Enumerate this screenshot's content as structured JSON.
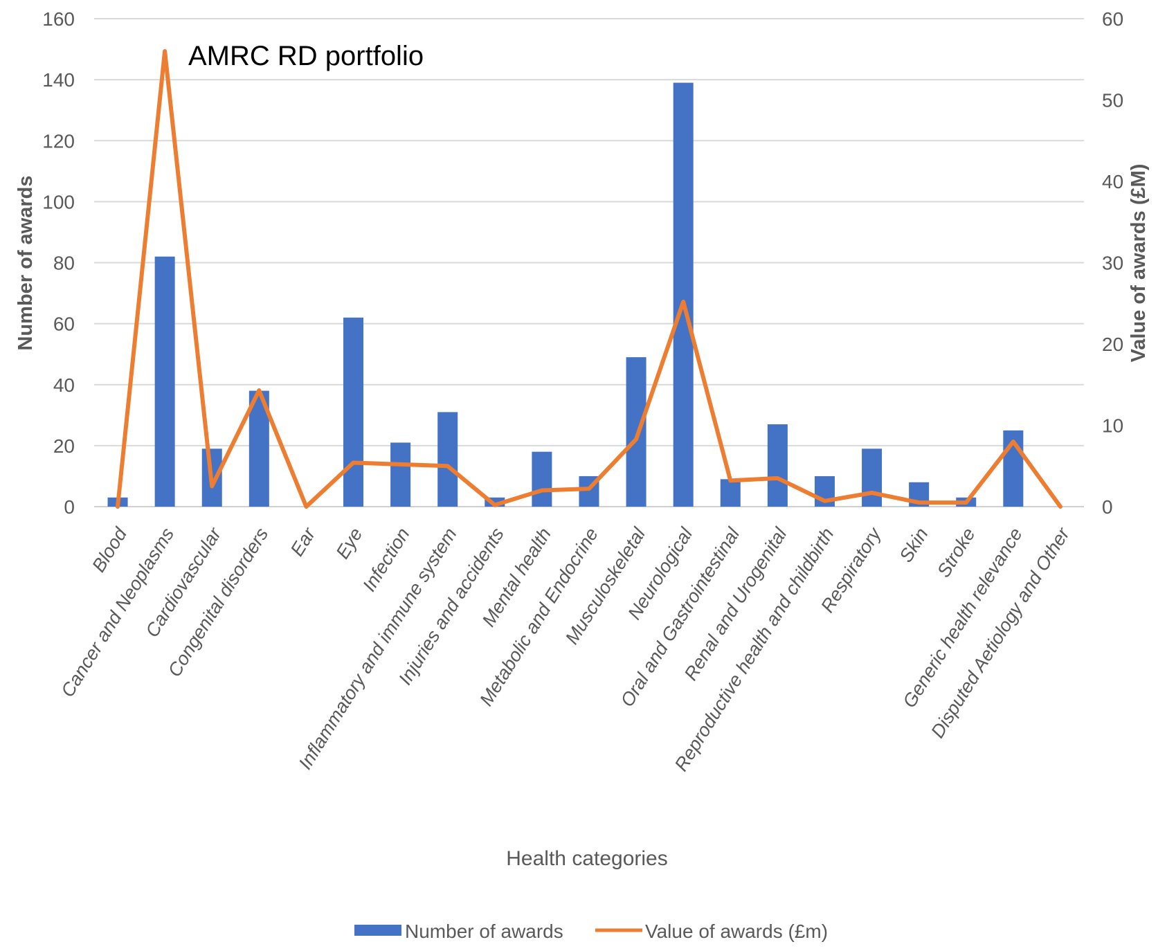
{
  "chart_data": {
    "type": "bar",
    "annotation": "AMRC RD portfolio",
    "xlabel": "Health categories",
    "ylabel_left": "Number of awards",
    "ylabel_right": "Value of awards (£M)",
    "ylim_left": [
      0,
      160
    ],
    "ylim_right": [
      0,
      60
    ],
    "yticks_left": [
      0,
      20,
      40,
      60,
      80,
      100,
      120,
      140,
      160
    ],
    "yticks_right": [
      0,
      10,
      20,
      30,
      40,
      50,
      60
    ],
    "grid": true,
    "legend_position": "bottom",
    "categories": [
      "Blood",
      "Cancer and Neoplasms",
      "Cardiovascular",
      "Congenital disorders",
      "Ear",
      "Eye",
      "Infection",
      "Inflammatory and immune system",
      "Injuries and accidents",
      "Mental health",
      "Metabolic and Endocrine",
      "Musculoskeletal",
      "Neurological",
      "Oral and Gastrointestinal",
      "Renal and Urogenital",
      "Reproductive health and childbirth",
      "Respiratory",
      "Skin",
      "Stroke",
      "Generic health relevance",
      "Disputed Aetiology and Other"
    ],
    "series": [
      {
        "name": "Number of awards",
        "type": "bar",
        "axis": "left",
        "color": "#4472C4",
        "values": [
          3,
          82,
          19,
          38,
          0,
          62,
          21,
          31,
          3,
          18,
          10,
          49,
          139,
          9,
          27,
          10,
          19,
          8,
          3,
          25,
          0
        ]
      },
      {
        "name": "Value of awards (£m)",
        "type": "line",
        "axis": "right",
        "color": "#ED7D31",
        "values": [
          0,
          56,
          2.5,
          14.3,
          0,
          5.4,
          5.2,
          5.0,
          0.2,
          2.0,
          2.2,
          8.3,
          25.2,
          3.2,
          3.5,
          0.7,
          1.7,
          0.5,
          0.5,
          8.0,
          0
        ]
      }
    ]
  }
}
